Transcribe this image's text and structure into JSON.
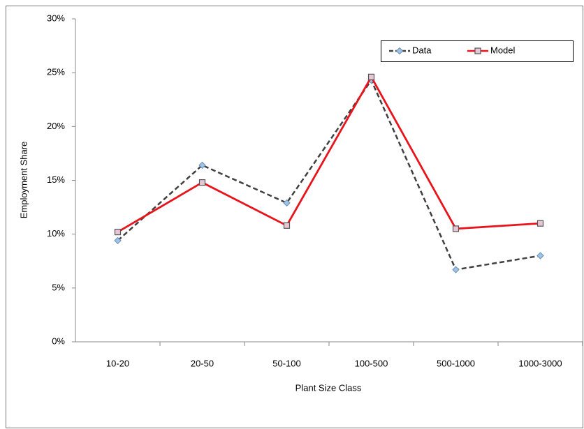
{
  "chart_data": {
    "type": "line",
    "xlabel": "Plant Size Class",
    "ylabel": "Employment Share",
    "categories": [
      "10-20",
      "20-50",
      "50-100",
      "100-500",
      "500-1000",
      "1000-3000"
    ],
    "series": [
      {
        "name": "Data",
        "color": "#404040",
        "marker": "diamond",
        "marker_color": "#9dc3e6",
        "dashed": true,
        "values": [
          9.4,
          16.4,
          12.9,
          24.3,
          6.7,
          8.0
        ]
      },
      {
        "name": "Model",
        "color": "#e8141b",
        "marker": "square",
        "marker_color": "#e6c6d4",
        "dashed": false,
        "values": [
          10.2,
          14.8,
          10.8,
          24.6,
          10.5,
          11.0
        ]
      }
    ],
    "ylim": [
      0,
      30
    ],
    "yticks": [
      {
        "value": 0,
        "label": "0%"
      },
      {
        "value": 5,
        "label": "5%"
      },
      {
        "value": 10,
        "label": "10%"
      },
      {
        "value": 15,
        "label": "15%"
      },
      {
        "value": 20,
        "label": "20%"
      },
      {
        "value": 25,
        "label": "25%"
      },
      {
        "value": 30,
        "label": "30%"
      }
    ],
    "grid": false
  }
}
